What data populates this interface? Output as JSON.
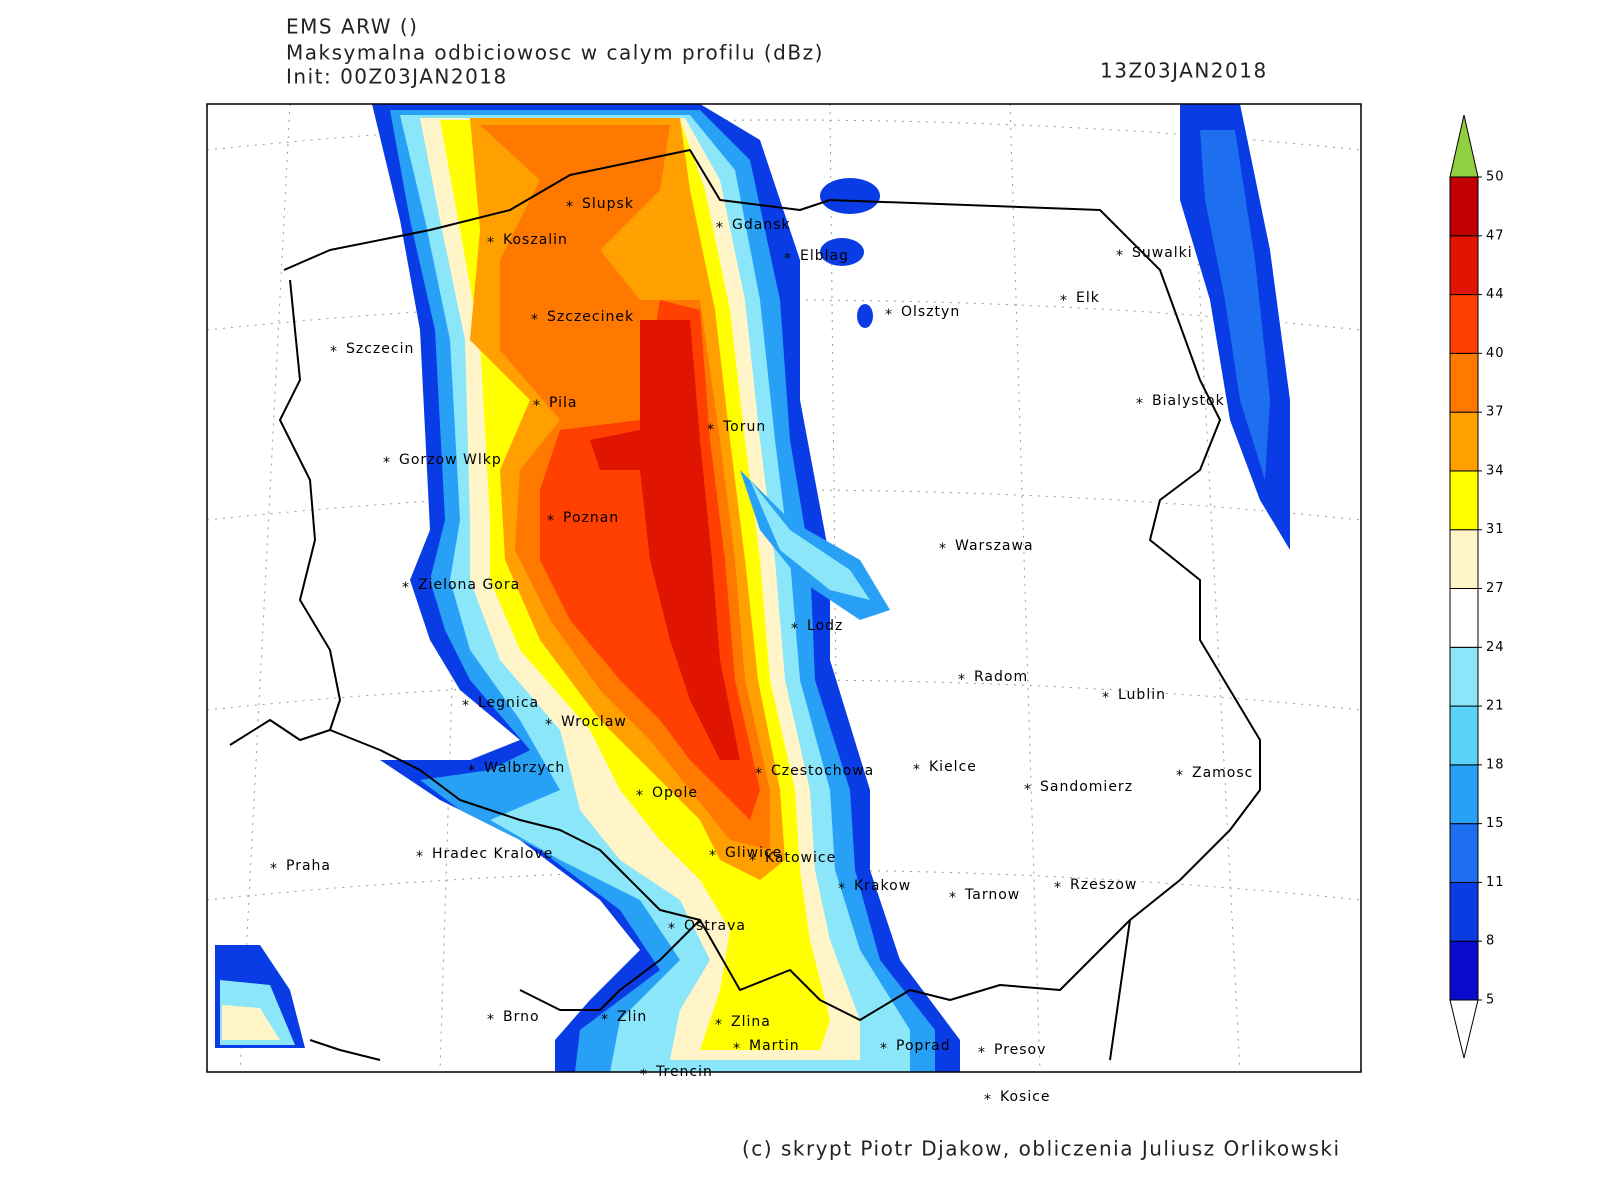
{
  "header": {
    "model": "EMS ARW ()",
    "field": "Maksymalna odbiciowosc w calym profilu (dBz)",
    "init": "Init: 00Z03JAN2018",
    "valid": "13Z03JAN2018"
  },
  "cities": [
    "Slupsk",
    "Koszalin",
    "Gdansk",
    "Elblag",
    "Olsztyn",
    "Elk",
    "Suwalki",
    "Szczecinek",
    "Szczecin",
    "Bialystok",
    "Pila",
    "Torun",
    "Gorzow Wlkp",
    "Poznan",
    "Warszawa",
    "Zielona Gora",
    "Lodz",
    "Radom",
    "Lublin",
    "Legnica",
    "Wroclaw",
    "Walbrzych",
    "Czestochowa",
    "Kielce",
    "Zamosc",
    "Sandomierz",
    "Opole",
    "Praha",
    "Hradec Kralove",
    "Gliwice",
    "Katowice",
    "Krakow",
    "Tarnow",
    "Rzeszow",
    "Ostrava",
    "Brno",
    "Zlin",
    "Zlina",
    "Martin",
    "Poprad",
    "Presov",
    "Trencin",
    "Kosice"
  ],
  "colorbar": {
    "ticks": [
      5,
      8,
      11,
      15,
      18,
      21,
      24,
      27,
      31,
      34,
      37,
      40,
      44,
      47,
      50
    ],
    "colors": [
      "#0a0acc",
      "#0a3ce6",
      "#1e6ef0",
      "#28a0f5",
      "#5ad2fa",
      "#8ce6fa",
      "#ffffff",
      "#fff5c8",
      "#ffff00",
      "#ffa000",
      "#ff7800",
      "#ff4000",
      "#e01400",
      "#c00000"
    ],
    "under_color": "#ffffff",
    "over_color": "#90d040"
  },
  "credit": "(c) skrypt Piotr Djakow, obliczenia Juliusz Orlikowski"
}
